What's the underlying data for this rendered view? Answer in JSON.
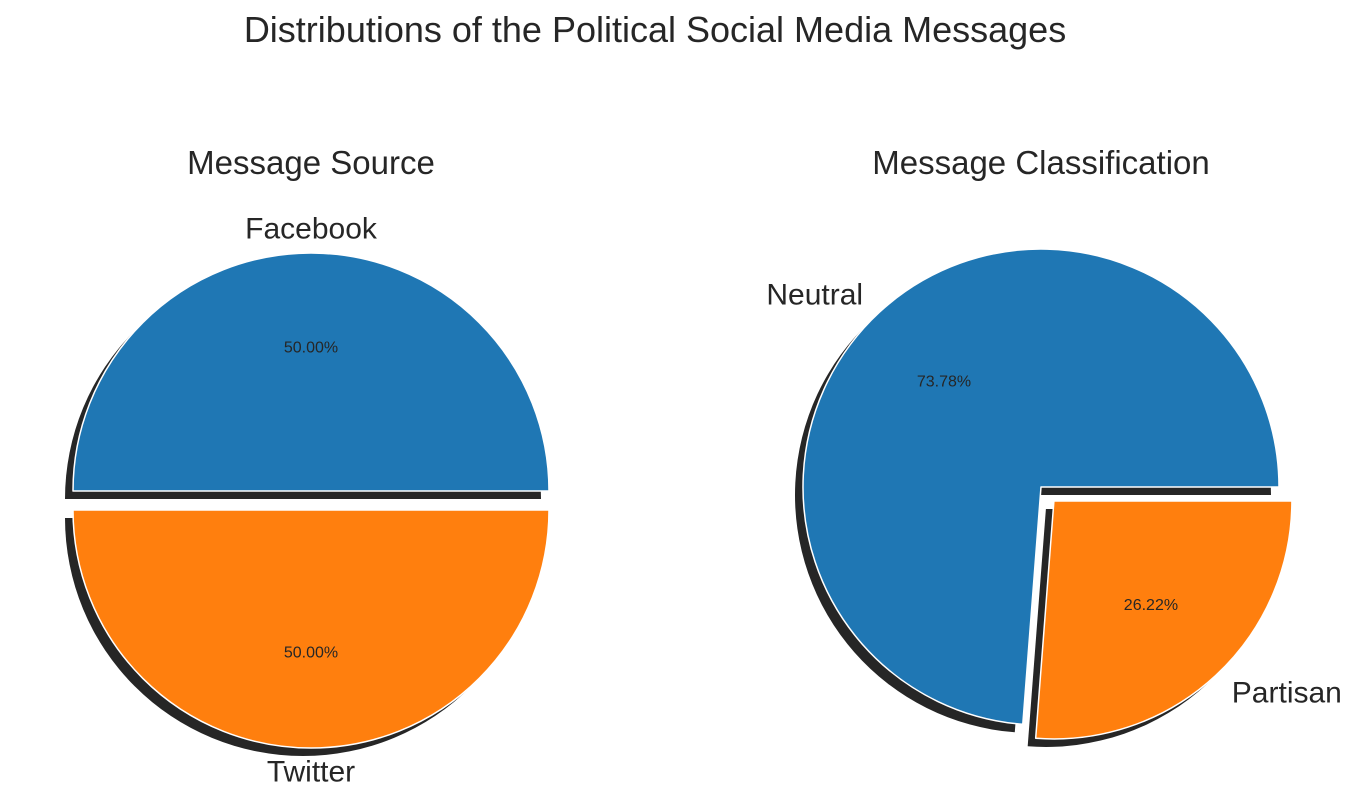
{
  "suptitle": "Distributions of the Political Social Media Messages",
  "colors": {
    "blue": "#1f77b4",
    "orange": "#ff7f0e",
    "shadow": "#262626",
    "text": "#262626",
    "edge": "#ffffff"
  },
  "chart_data": [
    {
      "type": "pie",
      "title": "Message Source",
      "labels": [
        "Facebook",
        "Twitter"
      ],
      "values": [
        50.0,
        50.0
      ],
      "percent_labels": [
        "50.00%",
        "50.00%"
      ],
      "explode": [
        0,
        1
      ],
      "shadow": true,
      "colors": [
        "#1f77b4",
        "#ff7f0e"
      ]
    },
    {
      "type": "pie",
      "title": "Message Classification",
      "labels": [
        "Neutral",
        "Partisan"
      ],
      "values": [
        73.78,
        26.22
      ],
      "percent_labels": [
        "73.78%",
        "26.22%"
      ],
      "explode": [
        0,
        1
      ],
      "shadow": true,
      "colors": [
        "#1f77b4",
        "#ff7f0e"
      ]
    }
  ]
}
